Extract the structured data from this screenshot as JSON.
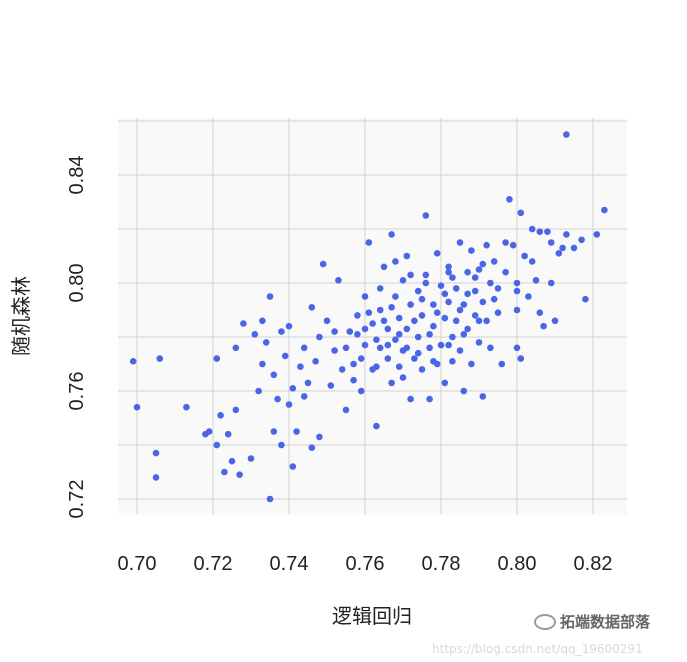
{
  "chart_data": {
    "type": "scatter",
    "xlabel": "逻辑回归",
    "ylabel": "随机森林",
    "xlim": [
      0.695,
      0.829
    ],
    "ylim": [
      0.714,
      0.858
    ],
    "xticks": [
      "0.70",
      "0.72",
      "0.74",
      "0.76",
      "0.78",
      "0.80",
      "0.82"
    ],
    "yticks": [
      "0.72",
      "0.76",
      "0.80",
      "0.84"
    ],
    "grid": true,
    "point_color": "#4a66e6",
    "panel_background": "#f8f9f8",
    "points": [
      [
        0.699,
        0.771
      ],
      [
        0.7,
        0.754
      ],
      [
        0.705,
        0.737
      ],
      [
        0.705,
        0.728
      ],
      [
        0.706,
        0.772
      ],
      [
        0.713,
        0.754
      ],
      [
        0.718,
        0.744
      ],
      [
        0.719,
        0.745
      ],
      [
        0.721,
        0.74
      ],
      [
        0.721,
        0.772
      ],
      [
        0.722,
        0.751
      ],
      [
        0.723,
        0.73
      ],
      [
        0.724,
        0.744
      ],
      [
        0.725,
        0.734
      ],
      [
        0.726,
        0.776
      ],
      [
        0.726,
        0.753
      ],
      [
        0.727,
        0.729
      ],
      [
        0.728,
        0.785
      ],
      [
        0.73,
        0.735
      ],
      [
        0.731,
        0.781
      ],
      [
        0.732,
        0.76
      ],
      [
        0.733,
        0.77
      ],
      [
        0.733,
        0.786
      ],
      [
        0.734,
        0.778
      ],
      [
        0.735,
        0.795
      ],
      [
        0.735,
        0.72
      ],
      [
        0.736,
        0.766
      ],
      [
        0.736,
        0.745
      ],
      [
        0.737,
        0.757
      ],
      [
        0.738,
        0.782
      ],
      [
        0.738,
        0.74
      ],
      [
        0.739,
        0.773
      ],
      [
        0.74,
        0.755
      ],
      [
        0.74,
        0.784
      ],
      [
        0.741,
        0.761
      ],
      [
        0.741,
        0.732
      ],
      [
        0.742,
        0.745
      ],
      [
        0.743,
        0.769
      ],
      [
        0.744,
        0.776
      ],
      [
        0.744,
        0.758
      ],
      [
        0.745,
        0.763
      ],
      [
        0.746,
        0.739
      ],
      [
        0.746,
        0.791
      ],
      [
        0.747,
        0.771
      ],
      [
        0.748,
        0.78
      ],
      [
        0.748,
        0.743
      ],
      [
        0.749,
        0.807
      ],
      [
        0.75,
        0.786
      ],
      [
        0.751,
        0.762
      ],
      [
        0.752,
        0.775
      ],
      [
        0.753,
        0.801
      ],
      [
        0.754,
        0.768
      ],
      [
        0.755,
        0.753
      ],
      [
        0.756,
        0.782
      ],
      [
        0.757,
        0.77
      ],
      [
        0.758,
        0.788
      ],
      [
        0.759,
        0.76
      ],
      [
        0.76,
        0.795
      ],
      [
        0.76,
        0.777
      ],
      [
        0.761,
        0.815
      ],
      [
        0.762,
        0.785
      ],
      [
        0.762,
        0.768
      ],
      [
        0.763,
        0.747
      ],
      [
        0.764,
        0.79
      ],
      [
        0.764,
        0.776
      ],
      [
        0.765,
        0.806
      ],
      [
        0.766,
        0.772
      ],
      [
        0.766,
        0.783
      ],
      [
        0.767,
        0.818
      ],
      [
        0.767,
        0.763
      ],
      [
        0.768,
        0.795
      ],
      [
        0.768,
        0.779
      ],
      [
        0.769,
        0.787
      ],
      [
        0.769,
        0.769
      ],
      [
        0.77,
        0.801
      ],
      [
        0.77,
        0.775
      ],
      [
        0.771,
        0.81
      ],
      [
        0.771,
        0.783
      ],
      [
        0.772,
        0.757
      ],
      [
        0.772,
        0.792
      ],
      [
        0.773,
        0.772
      ],
      [
        0.774,
        0.797
      ],
      [
        0.774,
        0.78
      ],
      [
        0.775,
        0.788
      ],
      [
        0.775,
        0.768
      ],
      [
        0.776,
        0.825
      ],
      [
        0.776,
        0.803
      ],
      [
        0.777,
        0.776
      ],
      [
        0.777,
        0.757
      ],
      [
        0.778,
        0.792
      ],
      [
        0.778,
        0.784
      ],
      [
        0.779,
        0.77
      ],
      [
        0.779,
        0.811
      ],
      [
        0.78,
        0.799
      ],
      [
        0.78,
        0.777
      ],
      [
        0.781,
        0.787
      ],
      [
        0.781,
        0.763
      ],
      [
        0.782,
        0.804
      ],
      [
        0.782,
        0.793
      ],
      [
        0.783,
        0.78
      ],
      [
        0.783,
        0.771
      ],
      [
        0.784,
        0.798
      ],
      [
        0.784,
        0.786
      ],
      [
        0.785,
        0.815
      ],
      [
        0.785,
        0.775
      ],
      [
        0.786,
        0.792
      ],
      [
        0.786,
        0.76
      ],
      [
        0.787,
        0.804
      ],
      [
        0.787,
        0.783
      ],
      [
        0.788,
        0.77
      ],
      [
        0.788,
        0.812
      ],
      [
        0.789,
        0.797
      ],
      [
        0.789,
        0.788
      ],
      [
        0.79,
        0.778
      ],
      [
        0.79,
        0.805
      ],
      [
        0.791,
        0.793
      ],
      [
        0.791,
        0.758
      ],
      [
        0.792,
        0.786
      ],
      [
        0.792,
        0.814
      ],
      [
        0.793,
        0.8
      ],
      [
        0.793,
        0.776
      ],
      [
        0.794,
        0.808
      ],
      [
        0.795,
        0.789
      ],
      [
        0.795,
        0.798
      ],
      [
        0.796,
        0.77
      ],
      [
        0.797,
        0.815
      ],
      [
        0.797,
        0.804
      ],
      [
        0.798,
        0.831
      ],
      [
        0.799,
        0.814
      ],
      [
        0.8,
        0.797
      ],
      [
        0.8,
        0.79
      ],
      [
        0.8,
        0.776
      ],
      [
        0.801,
        0.772
      ],
      [
        0.801,
        0.826
      ],
      [
        0.802,
        0.81
      ],
      [
        0.803,
        0.795
      ],
      [
        0.804,
        0.82
      ],
      [
        0.805,
        0.801
      ],
      [
        0.806,
        0.789
      ],
      [
        0.806,
        0.819
      ],
      [
        0.807,
        0.784
      ],
      [
        0.808,
        0.819
      ],
      [
        0.809,
        0.815
      ],
      [
        0.81,
        0.786
      ],
      [
        0.811,
        0.811
      ],
      [
        0.812,
        0.813
      ],
      [
        0.813,
        0.855
      ],
      [
        0.813,
        0.818
      ],
      [
        0.815,
        0.813
      ],
      [
        0.817,
        0.816
      ],
      [
        0.818,
        0.794
      ],
      [
        0.821,
        0.818
      ],
      [
        0.823,
        0.827
      ],
      [
        0.804,
        0.808
      ],
      [
        0.8,
        0.8
      ],
      [
        0.809,
        0.8
      ],
      [
        0.758,
        0.781
      ],
      [
        0.761,
        0.789
      ],
      [
        0.763,
        0.779
      ],
      [
        0.765,
        0.786
      ],
      [
        0.767,
        0.791
      ],
      [
        0.769,
        0.781
      ],
      [
        0.771,
        0.776
      ],
      [
        0.773,
        0.786
      ],
      [
        0.775,
        0.794
      ],
      [
        0.777,
        0.781
      ],
      [
        0.779,
        0.789
      ],
      [
        0.781,
        0.796
      ],
      [
        0.783,
        0.802
      ],
      [
        0.785,
        0.79
      ],
      [
        0.787,
        0.796
      ],
      [
        0.789,
        0.802
      ],
      [
        0.791,
        0.807
      ],
      [
        0.752,
        0.782
      ],
      [
        0.755,
        0.776
      ],
      [
        0.757,
        0.764
      ],
      [
        0.759,
        0.772
      ],
      [
        0.763,
        0.769
      ],
      [
        0.766,
        0.777
      ],
      [
        0.77,
        0.765
      ],
      [
        0.774,
        0.774
      ],
      [
        0.778,
        0.771
      ],
      [
        0.782,
        0.777
      ],
      [
        0.786,
        0.781
      ],
      [
        0.79,
        0.786
      ],
      [
        0.794,
        0.794
      ],
      [
        0.782,
        0.806
      ],
      [
        0.776,
        0.8
      ],
      [
        0.772,
        0.803
      ],
      [
        0.768,
        0.808
      ],
      [
        0.764,
        0.798
      ],
      [
        0.76,
        0.783
      ]
    ]
  },
  "watermark": {
    "url": "https://blog.csdn.net/qq_19600291",
    "logo_text": "拓端数据部落"
  }
}
